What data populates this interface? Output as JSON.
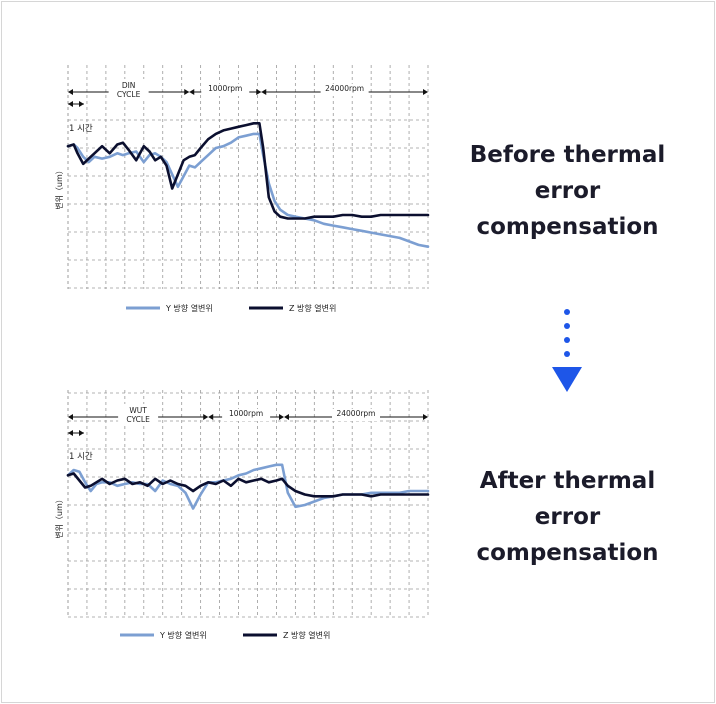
{
  "captions": {
    "before": "Before thermal\nerror\ncompensation",
    "after": "After thermal\nerror\ncompensation"
  },
  "arrow": {
    "icon": "dotted-down-arrow-icon",
    "color": "#1e56e8"
  },
  "colors": {
    "y_series": "#7c9fd2",
    "z_series": "#0b0f2f",
    "grid": "#9a9a9a"
  },
  "chart_data": [
    {
      "id": "before",
      "type": "line",
      "title": "",
      "ylabel": "변위（um）",
      "time_scale_label": "1 시간",
      "grid": true,
      "legend_position": "bottom",
      "phases": [
        {
          "label": "DIN\nCYCLE",
          "x_range": [
            0,
            6.4
          ]
        },
        {
          "label": "1000rpm",
          "x_range": [
            6.4,
            10.2
          ]
        },
        {
          "label": "24000rpm",
          "x_range": [
            10.2,
            19.0
          ]
        }
      ],
      "xlim": [
        0,
        19
      ],
      "ylim": [
        -8,
        2
      ],
      "series": [
        {
          "name": "Y 방향 열변위",
          "x": [
            0,
            0.3,
            0.5,
            0.8,
            1.1,
            1.4,
            1.8,
            2.2,
            2.6,
            2.9,
            3.2,
            3.6,
            4.0,
            4.3,
            4.6,
            4.9,
            5.2,
            5.5,
            5.8,
            6.1,
            6.4,
            6.7,
            7.0,
            7.4,
            7.8,
            8.2,
            8.6,
            9.0,
            9.4,
            9.8,
            10.1,
            10.3,
            10.6,
            10.9,
            11.2,
            11.6,
            12.0,
            12.5,
            13.0,
            13.5,
            14.0,
            14.5,
            15.0,
            15.5,
            16.0,
            16.5,
            17.0,
            17.5,
            18.0,
            18.5,
            19.0
          ],
          "y": [
            0.1,
            0.2,
            0.0,
            -0.5,
            -0.8,
            -0.5,
            -0.6,
            -0.5,
            -0.3,
            -0.4,
            -0.3,
            -0.2,
            -0.8,
            -0.4,
            -0.3,
            -0.5,
            -0.8,
            -1.5,
            -2.2,
            -1.6,
            -1.0,
            -1.1,
            -0.8,
            -0.4,
            0.0,
            0.1,
            0.3,
            0.6,
            0.7,
            0.8,
            0.8,
            -0.4,
            -2.0,
            -3.0,
            -3.5,
            -3.8,
            -3.9,
            -4.0,
            -4.1,
            -4.3,
            -4.4,
            -4.5,
            -4.6,
            -4.7,
            -4.8,
            -4.9,
            -5.0,
            -5.1,
            -5.3,
            -5.5,
            -5.6
          ]
        },
        {
          "name": "Z 방향 열변위",
          "x": [
            0,
            0.3,
            0.5,
            0.8,
            1.1,
            1.4,
            1.8,
            2.2,
            2.6,
            2.9,
            3.2,
            3.6,
            4.0,
            4.3,
            4.6,
            4.9,
            5.2,
            5.5,
            5.8,
            6.1,
            6.4,
            6.7,
            7.0,
            7.4,
            7.8,
            8.2,
            8.6,
            9.0,
            9.4,
            9.8,
            10.1,
            10.3,
            10.6,
            10.9,
            11.2,
            11.6,
            12.0,
            12.5,
            13.0,
            13.5,
            14.0,
            14.5,
            15.0,
            15.5,
            16.0,
            16.5,
            17.0,
            17.5,
            18.0,
            18.5,
            19.0
          ],
          "y": [
            0.1,
            0.2,
            -0.3,
            -0.9,
            -0.6,
            -0.3,
            0.1,
            -0.3,
            0.2,
            0.3,
            -0.1,
            -0.7,
            0.1,
            -0.2,
            -0.7,
            -0.5,
            -1.0,
            -2.3,
            -1.5,
            -0.7,
            -0.5,
            -0.4,
            0.0,
            0.5,
            0.8,
            1.0,
            1.1,
            1.2,
            1.3,
            1.4,
            1.4,
            0.0,
            -2.8,
            -3.6,
            -3.9,
            -4.0,
            -4.0,
            -4.0,
            -3.9,
            -3.9,
            -3.9,
            -3.8,
            -3.8,
            -3.9,
            -3.9,
            -3.8,
            -3.8,
            -3.8,
            -3.8,
            -3.8,
            -3.8
          ]
        }
      ]
    },
    {
      "id": "after",
      "type": "line",
      "title": "",
      "ylabel": "변위（um）",
      "time_scale_label": "1 시간",
      "grid": true,
      "legend_position": "bottom",
      "phases": [
        {
          "label": "WUT\nCYCLE",
          "x_range": [
            0,
            7.4
          ]
        },
        {
          "label": "1000rpm",
          "x_range": [
            7.4,
            11.4
          ]
        },
        {
          "label": "24000rpm",
          "x_range": [
            11.4,
            19.0
          ]
        }
      ],
      "xlim": [
        0,
        19
      ],
      "ylim": [
        -8,
        2
      ],
      "series": [
        {
          "name": "Y 방향 열변위",
          "x": [
            0,
            0.3,
            0.6,
            0.9,
            1.2,
            1.5,
            1.8,
            2.2,
            2.6,
            3.0,
            3.4,
            3.8,
            4.2,
            4.6,
            5.0,
            5.4,
            5.8,
            6.2,
            6.6,
            7.0,
            7.4,
            7.8,
            8.2,
            8.6,
            9.0,
            9.4,
            9.8,
            10.2,
            10.6,
            11.0,
            11.3,
            11.6,
            12.0,
            12.5,
            13.0,
            13.5,
            14.0,
            14.5,
            15.0,
            15.5,
            16.0,
            16.5,
            17.0,
            17.5,
            18.0,
            18.5,
            19.0
          ],
          "y": [
            0.1,
            0.4,
            0.3,
            -0.3,
            -0.8,
            -0.4,
            -0.3,
            -0.3,
            -0.5,
            -0.4,
            -0.3,
            -0.4,
            -0.4,
            -0.8,
            -0.2,
            -0.4,
            -0.5,
            -0.9,
            -1.8,
            -1.0,
            -0.3,
            -0.3,
            -0.2,
            -0.1,
            0.1,
            0.2,
            0.4,
            0.5,
            0.6,
            0.7,
            0.7,
            -0.9,
            -1.7,
            -1.6,
            -1.4,
            -1.2,
            -1.1,
            -1.0,
            -1.0,
            -1.0,
            -0.9,
            -0.9,
            -0.9,
            -0.9,
            -0.8,
            -0.8,
            -0.8
          ]
        },
        {
          "name": "Z 방향 열변위",
          "x": [
            0,
            0.3,
            0.6,
            0.9,
            1.2,
            1.5,
            1.8,
            2.2,
            2.6,
            3.0,
            3.4,
            3.8,
            4.2,
            4.6,
            5.0,
            5.4,
            5.8,
            6.2,
            6.6,
            7.0,
            7.4,
            7.8,
            8.2,
            8.6,
            9.0,
            9.4,
            9.8,
            10.2,
            10.6,
            11.0,
            11.3,
            11.6,
            12.0,
            12.5,
            13.0,
            13.5,
            14.0,
            14.5,
            15.0,
            15.5,
            16.0,
            16.5,
            17.0,
            17.5,
            18.0,
            18.5,
            19.0
          ],
          "y": [
            0.1,
            0.2,
            -0.2,
            -0.6,
            -0.5,
            -0.3,
            -0.1,
            -0.4,
            -0.2,
            -0.1,
            -0.4,
            -0.3,
            -0.5,
            -0.1,
            -0.4,
            -0.2,
            -0.4,
            -0.5,
            -0.8,
            -0.5,
            -0.3,
            -0.4,
            -0.2,
            -0.5,
            -0.1,
            -0.3,
            -0.2,
            -0.1,
            -0.3,
            -0.2,
            -0.1,
            -0.5,
            -0.8,
            -1.0,
            -1.1,
            -1.1,
            -1.1,
            -1.0,
            -1.0,
            -1.0,
            -1.1,
            -1.0,
            -1.0,
            -1.0,
            -1.0,
            -1.0,
            -1.0
          ]
        }
      ]
    }
  ]
}
